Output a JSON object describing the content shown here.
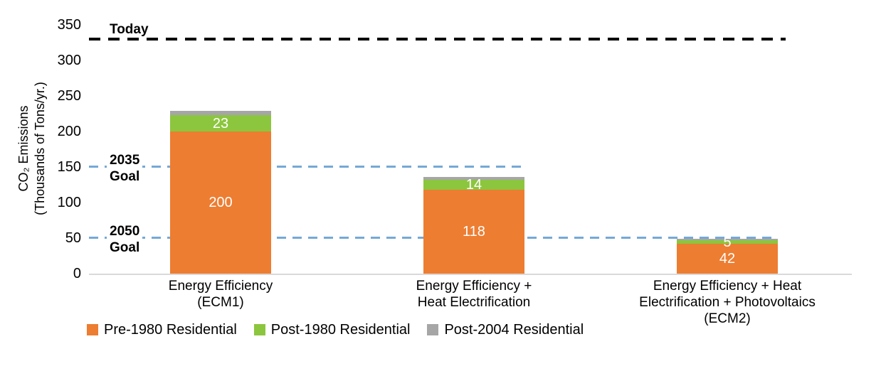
{
  "chart_data": {
    "type": "bar",
    "stacked": true,
    "title": "",
    "ylabel": {
      "line1": "CO₂ Emissions",
      "line2": "(Thousands of Tons/yr.)"
    },
    "ylim": [
      0,
      350
    ],
    "ytick_step": 50,
    "yticks": [
      350,
      300,
      250,
      200,
      150,
      100,
      50,
      0
    ],
    "grid": false,
    "axis_line_color": "#D9D9D9",
    "categories": [
      {
        "lines": [
          "Energy Efficiency",
          "(ECM1)"
        ]
      },
      {
        "lines": [
          "Energy Efficiency +",
          "Heat Electrification"
        ]
      },
      {
        "lines": [
          "Energy Efficiency + Heat",
          "Electrification + Photovoltaics",
          "(ECM2)"
        ]
      }
    ],
    "series": [
      {
        "name": "Pre-1980 Residential",
        "color": "#ED7D31",
        "values": [
          200,
          118,
          42
        ],
        "show_labels": true
      },
      {
        "name": "Post-1980 Residential",
        "color": "#8CC63E",
        "values": [
          23,
          14,
          5
        ],
        "show_labels": true
      },
      {
        "name": "Post-2004 Residential",
        "color": "#A6A6A6",
        "values": [
          6,
          4,
          2
        ],
        "show_labels": false
      }
    ],
    "value_label_color": "#FFFFFF",
    "reference_lines": [
      {
        "label_lines": [
          "Today"
        ],
        "value": 330,
        "color": "#000000",
        "extent": 0.917,
        "label_placement": "above"
      },
      {
        "label_lines": [
          "2035",
          "Goal"
        ],
        "value": 150,
        "color": "#74A9D6",
        "extent": 0.576,
        "label_placement": "middle"
      },
      {
        "label_lines": [
          "2050",
          "Goal"
        ],
        "value": 50,
        "color": "#74A9D6",
        "extent": 0.906,
        "label_placement": "middle"
      }
    ],
    "legend_position": "bottom"
  }
}
